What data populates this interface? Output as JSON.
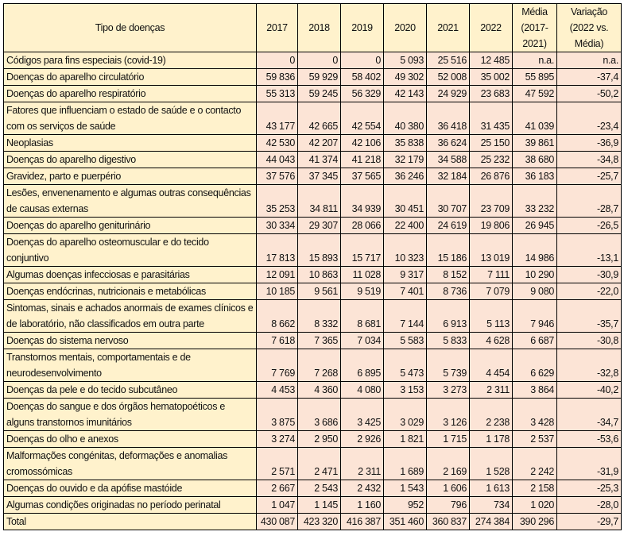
{
  "header": {
    "label": "Tipo de doenças",
    "columns": [
      "2017",
      "2018",
      "2019",
      "2020",
      "2021",
      "2022",
      "Média (2017-2021)",
      "Variação (2022 vs. Média)"
    ]
  },
  "rows": [
    {
      "label": "Códigos para fins especiais (covid-19)",
      "values": [
        "0",
        "0",
        "0",
        "5 093",
        "25 516",
        "12 485",
        "n.a.",
        "n.a."
      ]
    },
    {
      "label": "Doenças do aparelho circulatório",
      "values": [
        "59 836",
        "59 929",
        "58 402",
        "49 302",
        "52 008",
        "35 002",
        "55 895",
        "-37,4"
      ]
    },
    {
      "label": "Doenças do aparelho respiratório",
      "values": [
        "55 313",
        "59 245",
        "56 329",
        "42 143",
        "24 929",
        "23 683",
        "47 592",
        "-50,2"
      ]
    },
    {
      "label": "Fatores que influenciam o estado de saúde e o contacto com os serviços de saúde",
      "values": [
        "43 177",
        "42 665",
        "42 554",
        "40 380",
        "36 418",
        "31 435",
        "41 039",
        "-23,4"
      ]
    },
    {
      "label": "Neoplasias",
      "values": [
        "42 530",
        "42 207",
        "42 106",
        "35 838",
        "36 624",
        "25 150",
        "39 861",
        "-36,9"
      ]
    },
    {
      "label": "Doenças do aparelho digestivo",
      "values": [
        "44 043",
        "41 374",
        "41 218",
        "32 179",
        "34 588",
        "25 232",
        "38 680",
        "-34,8"
      ]
    },
    {
      "label": "Gravidez, parto e puerpério",
      "values": [
        "37 576",
        "37 345",
        "37 565",
        "36 246",
        "32 184",
        "26 876",
        "36 183",
        "-25,7"
      ]
    },
    {
      "label": "Lesões, envenenamento e algumas outras consequências de causas externas",
      "values": [
        "35 253",
        "34 811",
        "34 939",
        "30 451",
        "30 707",
        "23 709",
        "33 232",
        "-28,7"
      ]
    },
    {
      "label": "Doenças do aparelho geniturinário",
      "values": [
        "30 334",
        "29 307",
        "28 066",
        "22 400",
        "24 619",
        "19 806",
        "26 945",
        "-26,5"
      ]
    },
    {
      "label": "Doenças do aparelho osteomuscular e do tecido conjuntivo",
      "values": [
        "17 813",
        "15 893",
        "15 717",
        "10 323",
        "15 186",
        "13 019",
        "14 986",
        "-13,1"
      ]
    },
    {
      "label": "Algumas doenças infecciosas e parasitárias",
      "values": [
        "12 091",
        "10 863",
        "11 028",
        "9 317",
        "8 152",
        "7 111",
        "10 290",
        "-30,9"
      ]
    },
    {
      "label": "Doenças endócrinas, nutricionais e metabólicas",
      "values": [
        "10 185",
        "9 561",
        "9 519",
        "7 401",
        "8 736",
        "7 079",
        "9 080",
        "-22,0"
      ]
    },
    {
      "label": "Sintomas, sinais e achados anormais de exames clínicos e de laboratório, não classificados em outra parte",
      "values": [
        "8 662",
        "8 332",
        "8 681",
        "7 144",
        "6 913",
        "5 113",
        "7 946",
        "-35,7"
      ]
    },
    {
      "label": "Doenças do sistema nervoso",
      "values": [
        "7 618",
        "7 365",
        "7 034",
        "5 583",
        "5 833",
        "4 628",
        "6 687",
        "-30,8"
      ]
    },
    {
      "label": "Transtornos mentais, comportamentais e de neurodesenvolvimento",
      "values": [
        "7 769",
        "7 268",
        "6 895",
        "5 473",
        "5 739",
        "4 454",
        "6 629",
        "-32,8"
      ]
    },
    {
      "label": "Doenças da pele e do tecido subcutâneo",
      "values": [
        "4 453",
        "4 360",
        "4 080",
        "3 153",
        "3 273",
        "2 311",
        "3 864",
        "-40,2"
      ]
    },
    {
      "label": "Doenças do sangue e dos órgãos hematopoéticos e alguns transtornos imunitários",
      "values": [
        "3 875",
        "3 686",
        "3 425",
        "3 029",
        "3 126",
        "2 238",
        "3 428",
        "-34,7"
      ]
    },
    {
      "label": "Doenças do olho e anexos",
      "values": [
        "3 274",
        "2 950",
        "2 926",
        "1 821",
        "1 715",
        "1 178",
        "2 537",
        "-53,6"
      ]
    },
    {
      "label": "Malformações congénitas, deformações e anomalias cromossómicas",
      "values": [
        "2 571",
        "2 471",
        "2 311",
        "1 689",
        "2 169",
        "1 528",
        "2 242",
        "-31,9"
      ]
    },
    {
      "label": "Doenças do ouvido e da apófise mastóide",
      "values": [
        "2 667",
        "2 543",
        "2 432",
        "1 543",
        "1 606",
        "1 613",
        "2 158",
        "-25,3"
      ]
    },
    {
      "label": "Algumas condições originadas no período perinatal",
      "values": [
        "1 047",
        "1 145",
        "1 160",
        "952",
        "796",
        "734",
        "1 020",
        "-28,0"
      ]
    },
    {
      "label": "Total",
      "values": [
        "430 087",
        "423 320",
        "416 387",
        "351 460",
        "360 837",
        "274 384",
        "390 296",
        "-29,7"
      ]
    }
  ],
  "colors": {
    "label_bg": "#fff2cc",
    "value_bg": "#fce4d6",
    "border": "#000000"
  }
}
